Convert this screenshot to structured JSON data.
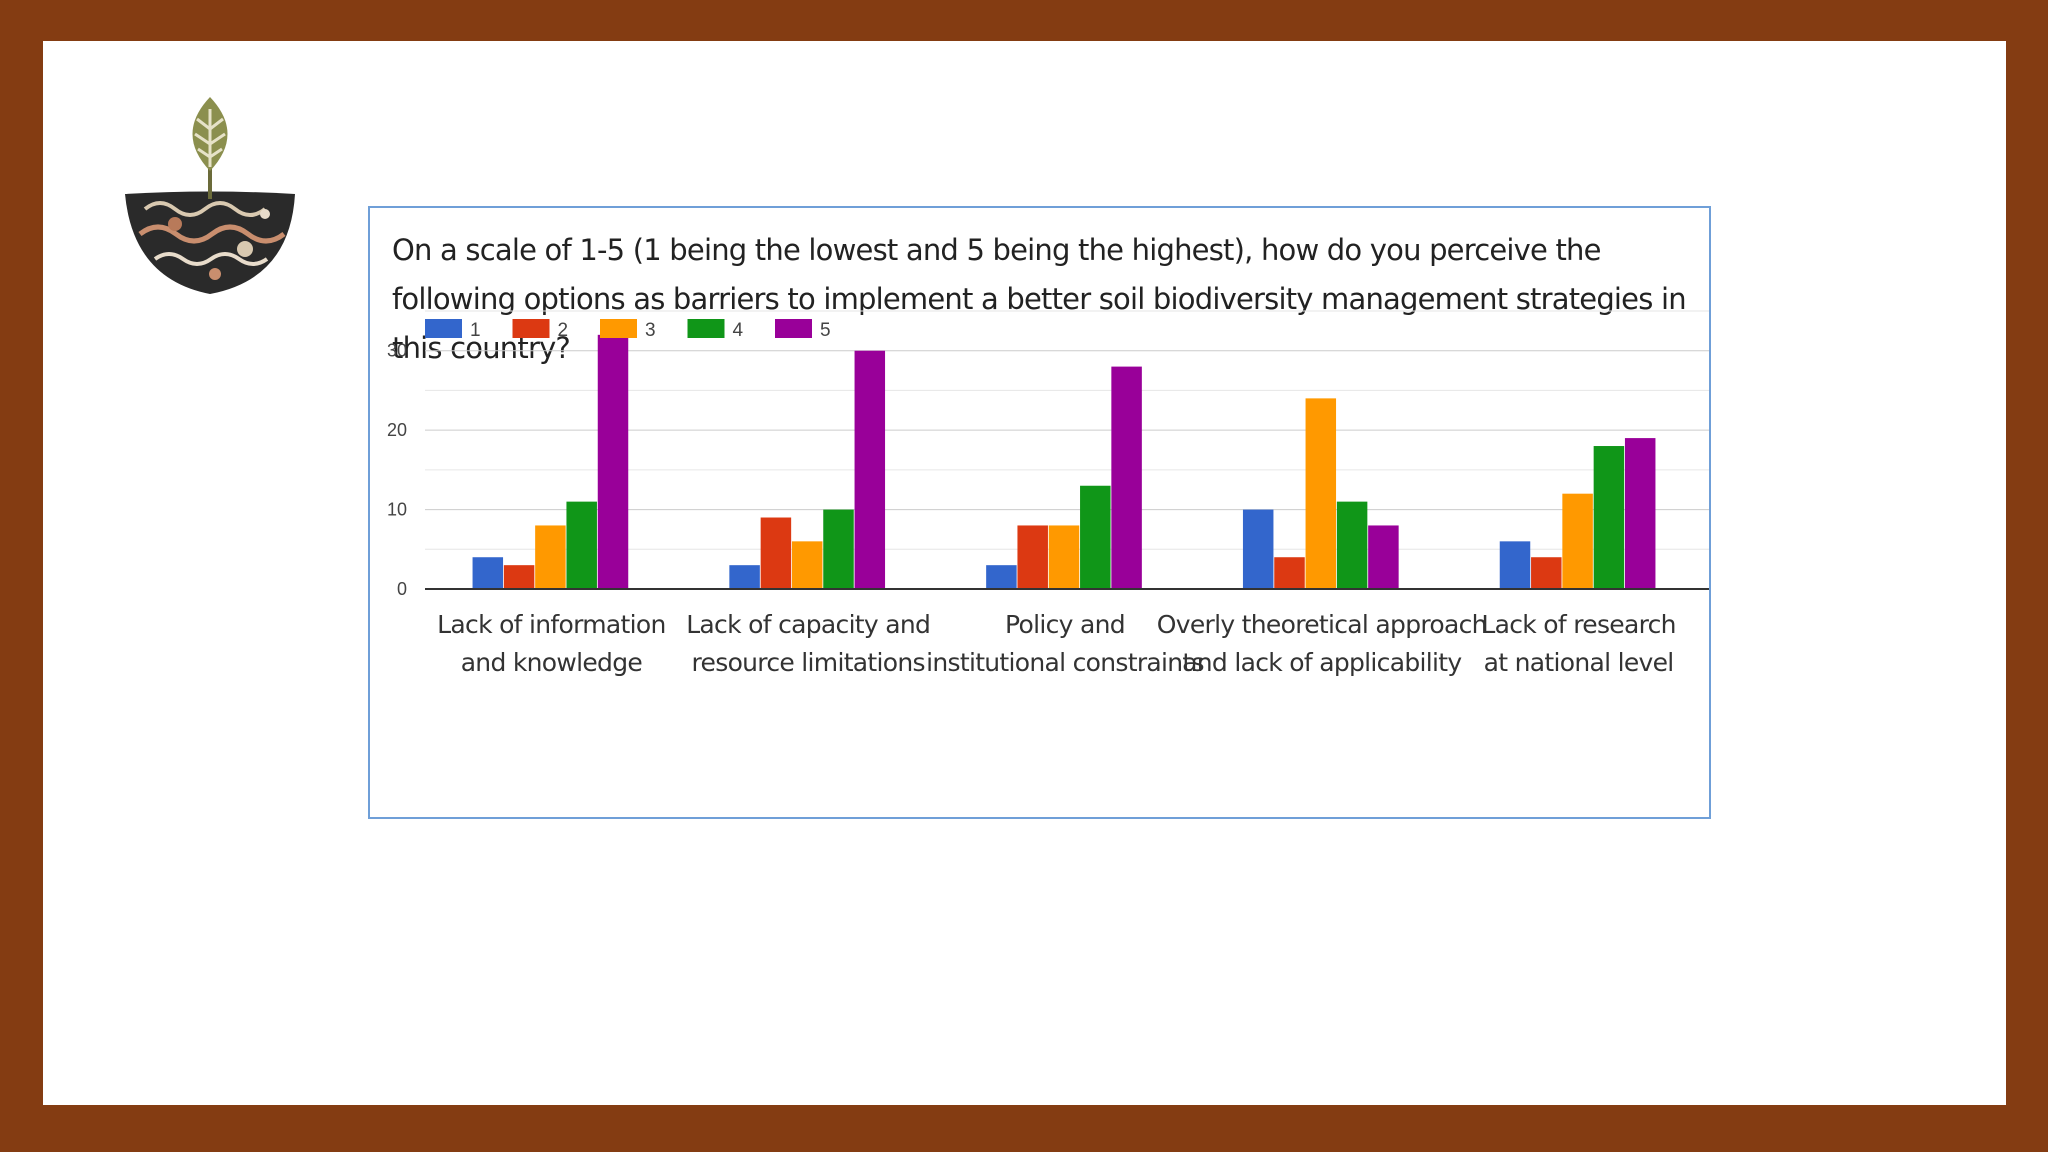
{
  "slide": {
    "frame_color": "#843c12",
    "background_color": "#ffffff",
    "logo": "plant-in-patterned-bowl-logo"
  },
  "chart_data": {
    "type": "bar",
    "title": "On a scale of 1-5 (1 being the lowest and 5 being the highest), how do you perceive the following options as barriers to implement a better soil biodiversity management strategies in this country?",
    "categories": [
      [
        "Lack of information",
        "and knowledge"
      ],
      [
        "Lack of capacity and",
        "resource limitations"
      ],
      [
        "Policy and",
        "institutional constraints"
      ],
      [
        "Overly theoretical approach",
        "and lack of applicability"
      ],
      [
        "Lack of research",
        "at national level"
      ]
    ],
    "series": [
      {
        "name": "1",
        "color": "#3366cc",
        "values": [
          4,
          3,
          3,
          10,
          6
        ]
      },
      {
        "name": "2",
        "color": "#dc3912",
        "values": [
          3,
          9,
          8,
          4,
          4
        ]
      },
      {
        "name": "3",
        "color": "#ff9900",
        "values": [
          8,
          6,
          8,
          24,
          12
        ]
      },
      {
        "name": "4",
        "color": "#109618",
        "values": [
          11,
          10,
          13,
          11,
          18
        ]
      },
      {
        "name": "5",
        "color": "#990099",
        "values": [
          32,
          30,
          28,
          8,
          19
        ]
      }
    ],
    "yticks": [
      0,
      10,
      20,
      30
    ],
    "ylim": [
      0,
      35
    ],
    "grid": true,
    "legend_position": "top-left",
    "xlabel": "",
    "ylabel": ""
  }
}
